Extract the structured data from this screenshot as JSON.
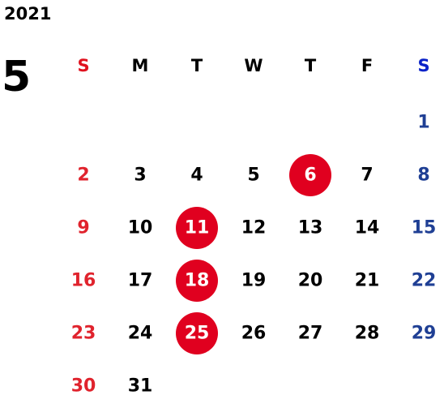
{
  "year": "2021",
  "month": "5",
  "weekdays": [
    "S",
    "M",
    "T",
    "W",
    "T",
    "F",
    "S"
  ],
  "weeks": [
    [
      null,
      null,
      null,
      null,
      null,
      null,
      1
    ],
    [
      2,
      3,
      4,
      5,
      {
        "day": 6,
        "marked": true
      },
      7,
      8
    ],
    [
      9,
      10,
      {
        "day": 11,
        "marked": true
      },
      12,
      13,
      14,
      15
    ],
    [
      16,
      17,
      {
        "day": 18,
        "marked": true
      },
      19,
      20,
      21,
      22
    ],
    [
      23,
      24,
      {
        "day": 25,
        "marked": true
      },
      26,
      27,
      28,
      29
    ],
    [
      30,
      31,
      null,
      null,
      null,
      null,
      null
    ]
  ]
}
